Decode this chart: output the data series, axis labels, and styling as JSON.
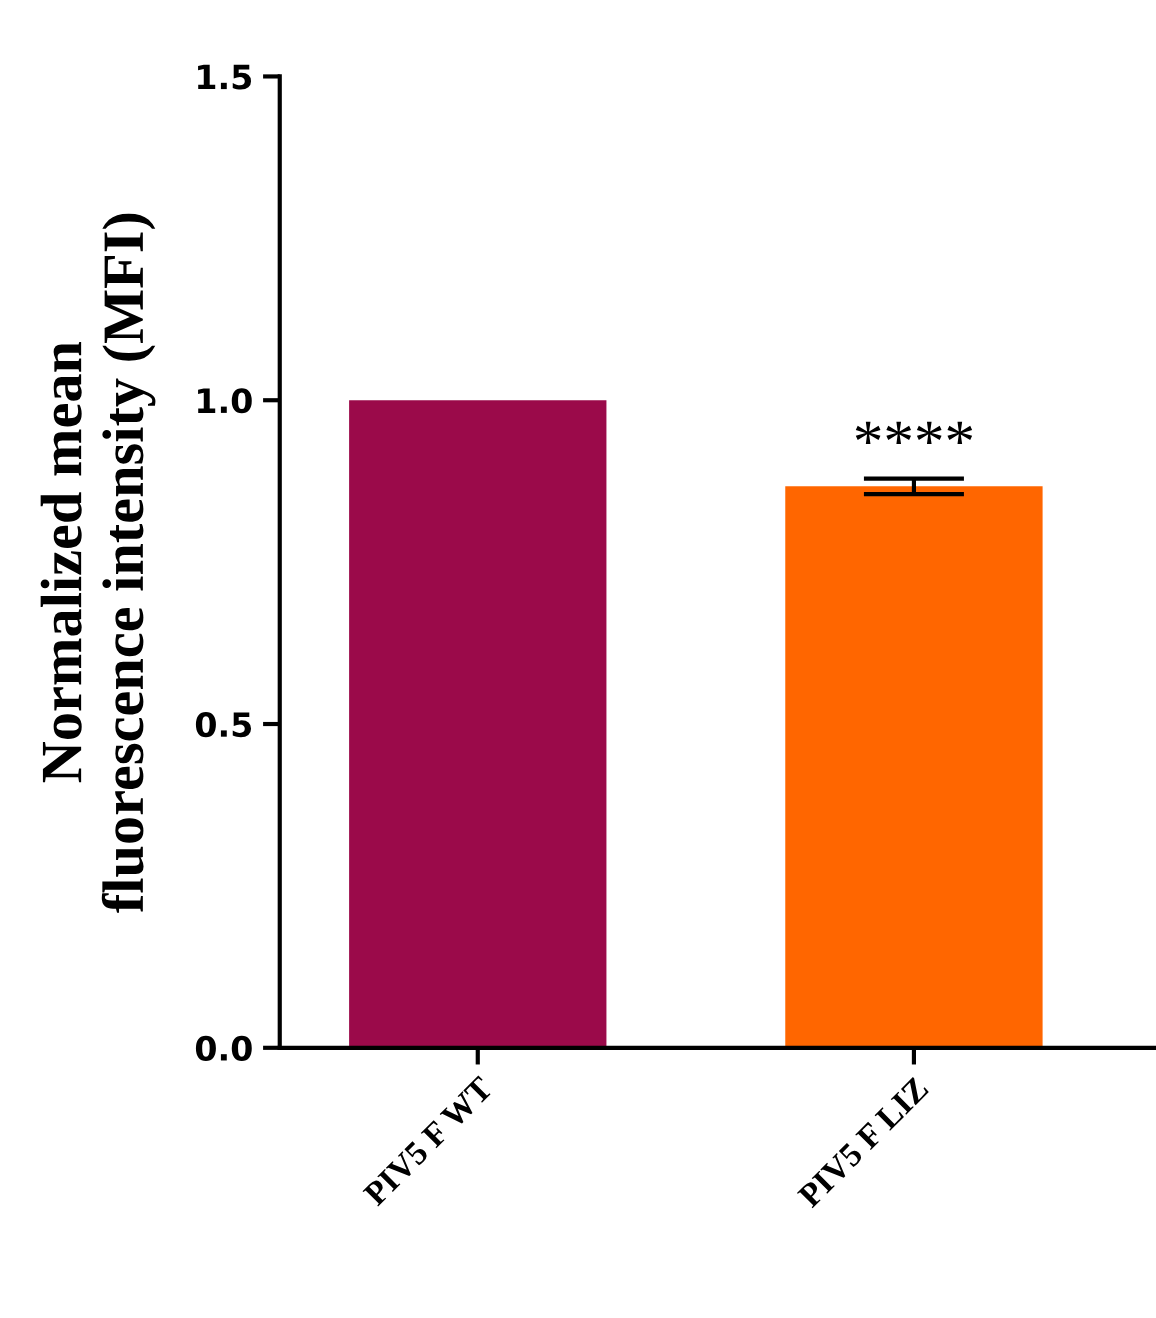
{
  "chart_data": {
    "type": "bar",
    "ylabel": "Normalized mean fluorescence intensity (MFI)",
    "categories": [
      "PIV5 F WT",
      "PIV5 F LIZ"
    ],
    "values": [
      1.0,
      0.867
    ],
    "errors": [
      null,
      0.012
    ],
    "colors": [
      "#9b0a4a",
      "#ff6600"
    ],
    "ylim": [
      0,
      1.5
    ],
    "yticks": [
      {
        "value": 0,
        "label": "0.0"
      },
      {
        "value": 0.5,
        "label": "0.5"
      },
      {
        "value": 1.0,
        "label": "1.0"
      },
      {
        "value": 1.5,
        "label": "1.5"
      }
    ],
    "annotations": [
      {
        "text": "****",
        "x": "PIV5 F LIZ",
        "y": 0.885
      }
    ],
    "grid": false,
    "legend": false
  }
}
